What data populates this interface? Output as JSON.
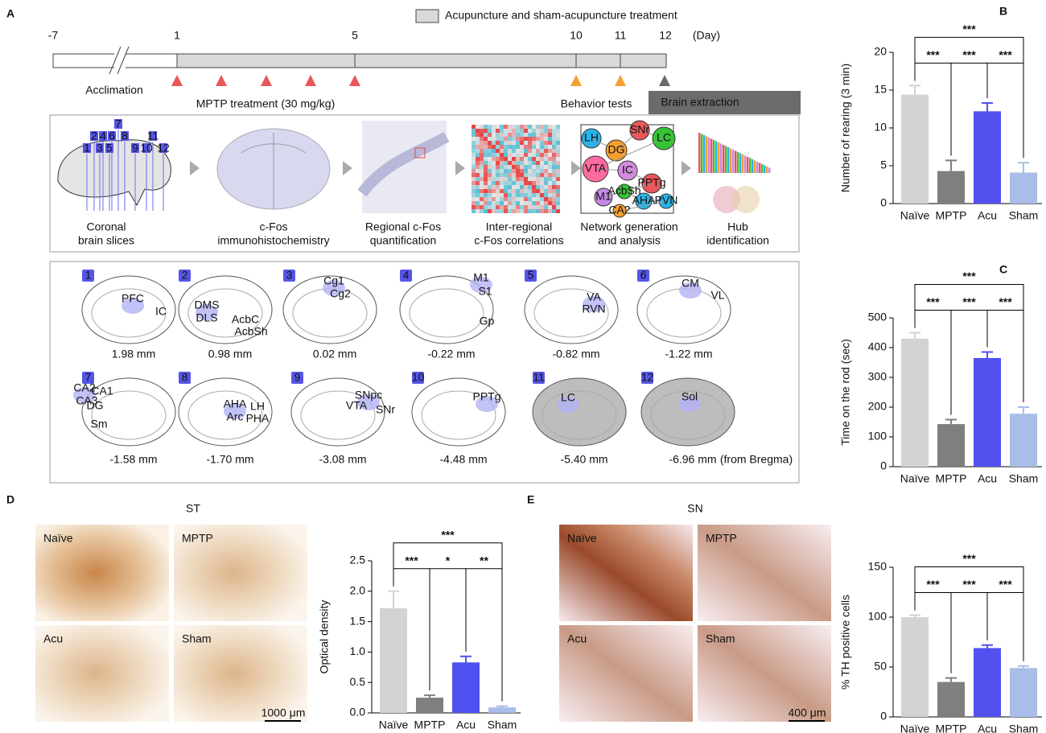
{
  "letters": [
    "A",
    "B",
    "C",
    "D",
    "E"
  ],
  "timeline": {
    "legend": "Acupuncture and sham-acupuncture treatment",
    "days": [
      "-7",
      "1",
      "5",
      "10",
      "11",
      "12"
    ],
    "day_unit": "(Day)",
    "acclimation": "Acclimation",
    "mptp": "MPTP treatment (30 mg/kg)",
    "behavior": "Behavior tests",
    "extraction": "Brain extraction"
  },
  "pipeline": [
    [
      "Coronal",
      "brain slices"
    ],
    [
      "c-Fos",
      "immunohistochemistry"
    ],
    [
      "Regional c-Fos",
      "quantification"
    ],
    [
      "Inter-regional",
      "c-Fos correlations"
    ],
    [
      "Network generation",
      "and analysis"
    ],
    [
      "Hub",
      "identification"
    ]
  ],
  "network_nodes": [
    "LH",
    "DG",
    "SNr",
    "LC",
    "VTA",
    "IC",
    "PPTg",
    "M1",
    "AcbSh",
    "AHA",
    "PVN",
    "CA2"
  ],
  "slices": [
    {
      "num": "1",
      "mm": "1.98 mm",
      "regions": [
        "PFC",
        "IC"
      ]
    },
    {
      "num": "2",
      "mm": "0.98 mm",
      "regions": [
        "DMS",
        "DLS",
        "AcbC",
        "AcbSh"
      ]
    },
    {
      "num": "3",
      "mm": "0.02 mm",
      "regions": [
        "Cg1",
        "Cg2"
      ]
    },
    {
      "num": "4",
      "mm": "-0.22 mm",
      "regions": [
        "M1",
        "S1",
        "Gp"
      ]
    },
    {
      "num": "5",
      "mm": "-0.82 mm",
      "regions": [
        "VA",
        "RVN"
      ]
    },
    {
      "num": "6",
      "mm": "-1.22 mm",
      "regions": [
        "CM",
        "VL"
      ]
    },
    {
      "num": "7",
      "mm": "-1.58 mm",
      "regions": [
        "CA2",
        "CA3",
        "CA1",
        "DG",
        "Sm"
      ]
    },
    {
      "num": "8",
      "mm": "-1.70 mm",
      "regions": [
        "AHA",
        "LH",
        "Arc",
        "PHA"
      ]
    },
    {
      "num": "9",
      "mm": "-3.08 mm",
      "regions": [
        "SNpc",
        "VTA",
        "SNr"
      ]
    },
    {
      "num": "10",
      "mm": "-4.48 mm",
      "regions": [
        "PPTg"
      ]
    },
    {
      "num": "11",
      "mm": "-5.40 mm",
      "regions": [
        "LC"
      ]
    },
    {
      "num": "12",
      "mm": "-6.96 mm",
      "regions": [
        "Sol"
      ]
    }
  ],
  "bregma": "(from Bregma)",
  "st": {
    "title": "ST",
    "images": [
      "Naïve",
      "MPTP",
      "Acu",
      "Sham"
    ],
    "scale": "1000 μm"
  },
  "sn": {
    "title": "SN",
    "images": [
      "Naïve",
      "MPTP",
      "Acu",
      "Sham"
    ],
    "scale": "400 μm"
  },
  "chart_data": [
    {
      "type": "bar",
      "panel": "B",
      "ylabel": "Number of rearing (3 min)",
      "categories": [
        "Naïve",
        "MPTP",
        "Acu",
        "Sham"
      ],
      "values": [
        14.4,
        4.3,
        12.2,
        4.1
      ],
      "errors": [
        1.2,
        1.4,
        1.1,
        1.3
      ],
      "colors": [
        "#d3d3d3",
        "#7f7f7f",
        "#5151f0",
        "#a9bde8"
      ],
      "ylim": [
        0,
        20
      ],
      "yticks": [
        0,
        5,
        10,
        15,
        20
      ],
      "significance": [
        "***",
        "***",
        "***",
        "***"
      ]
    },
    {
      "type": "bar",
      "panel": "C",
      "ylabel": "Time on the rod (sec)",
      "categories": [
        "Naïve",
        "MPTP",
        "Acu",
        "Sham"
      ],
      "values": [
        430,
        143,
        365,
        178
      ],
      "errors": [
        20,
        15,
        20,
        22
      ],
      "colors": [
        "#d3d3d3",
        "#7f7f7f",
        "#5151f0",
        "#a9bde8"
      ],
      "ylim": [
        0,
        500
      ],
      "yticks": [
        0,
        100,
        200,
        300,
        400,
        500
      ],
      "significance": [
        "***",
        "***",
        "***",
        "***"
      ]
    },
    {
      "type": "bar",
      "panel": "D",
      "ylabel": "Optical density",
      "categories": [
        "Naïve",
        "MPTP",
        "Acu",
        "Sham"
      ],
      "values": [
        1.72,
        0.25,
        0.83,
        0.09
      ],
      "errors": [
        0.28,
        0.04,
        0.1,
        0.02
      ],
      "colors": [
        "#d3d3d3",
        "#7f7f7f",
        "#5151f0",
        "#a9bde8"
      ],
      "ylim": [
        0,
        2.5
      ],
      "yticks": [
        {
          "value": 0,
          "label": "0.0"
        },
        0.5,
        {
          "value": 1,
          "label": "1.0"
        },
        1.5,
        {
          "value": 2,
          "label": "2.0"
        },
        2.5
      ],
      "significance": [
        "***",
        "***",
        "*",
        "**"
      ]
    },
    {
      "type": "bar",
      "panel": "E",
      "ylabel": "% TH positive cells",
      "categories": [
        "Naïve",
        "MPTP",
        "Acu",
        "Sham"
      ],
      "values": [
        100,
        35,
        69,
        49
      ],
      "errors": [
        2,
        4,
        3,
        2
      ],
      "colors": [
        "#d3d3d3",
        "#7f7f7f",
        "#5151f0",
        "#a9bde8"
      ],
      "ylim": [
        0,
        150
      ],
      "yticks": [
        0,
        50,
        100,
        150
      ],
      "significance": [
        "***",
        "***",
        "***",
        "***"
      ]
    }
  ]
}
